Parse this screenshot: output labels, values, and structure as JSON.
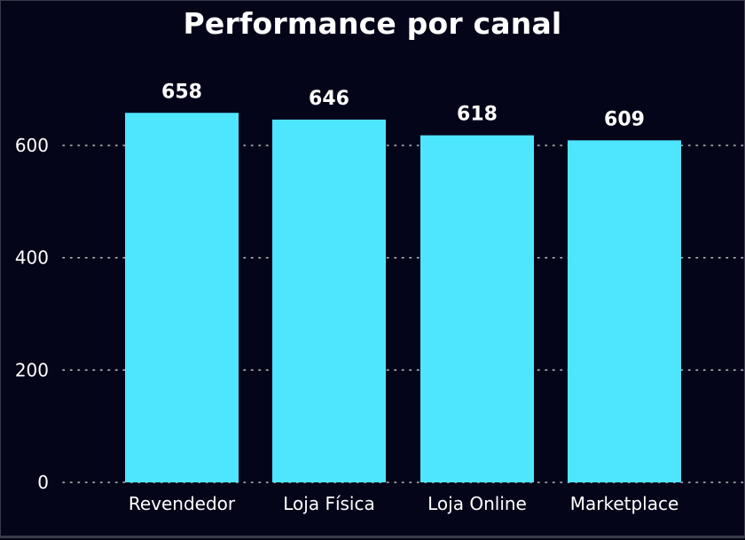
{
  "chart_data": {
    "type": "bar",
    "title": "Performance por canal",
    "xlabel": "",
    "ylabel": "",
    "categories": [
      "Revendedor",
      "Loja Física",
      "Loja Online",
      "Marketplace"
    ],
    "values": [
      658,
      646,
      618,
      609
    ],
    "value_labels": [
      "658",
      "646",
      "618",
      "609"
    ],
    "ylim": [
      0,
      700
    ],
    "yticks": [
      0,
      200,
      400,
      600
    ],
    "ytick_labels": [
      "0",
      "200",
      "400",
      "600"
    ],
    "grid": "horizontal dotted",
    "legend": "none",
    "bar_color": "#4ee6ff",
    "background_color": "#05051a",
    "text_color": "#ffffff",
    "grid_color": "#bbbbbb"
  }
}
